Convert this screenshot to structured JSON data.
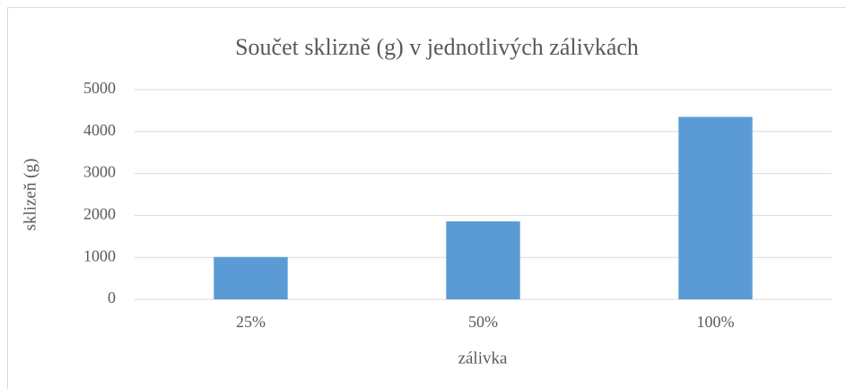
{
  "chart_data": {
    "type": "bar",
    "title": "Součet sklizně (g) v jednotlivých zálivkách",
    "x_label": "zálivka",
    "y_label": "sklizeň (g)",
    "categories": [
      "25%",
      "50%",
      "100%"
    ],
    "values": [
      1010,
      1860,
      4350
    ],
    "color": "#5b9bd5",
    "ylim": [
      0,
      5000
    ],
    "yticks": [
      0,
      1000,
      2000,
      3000,
      4000,
      5000
    ],
    "grid": true
  }
}
